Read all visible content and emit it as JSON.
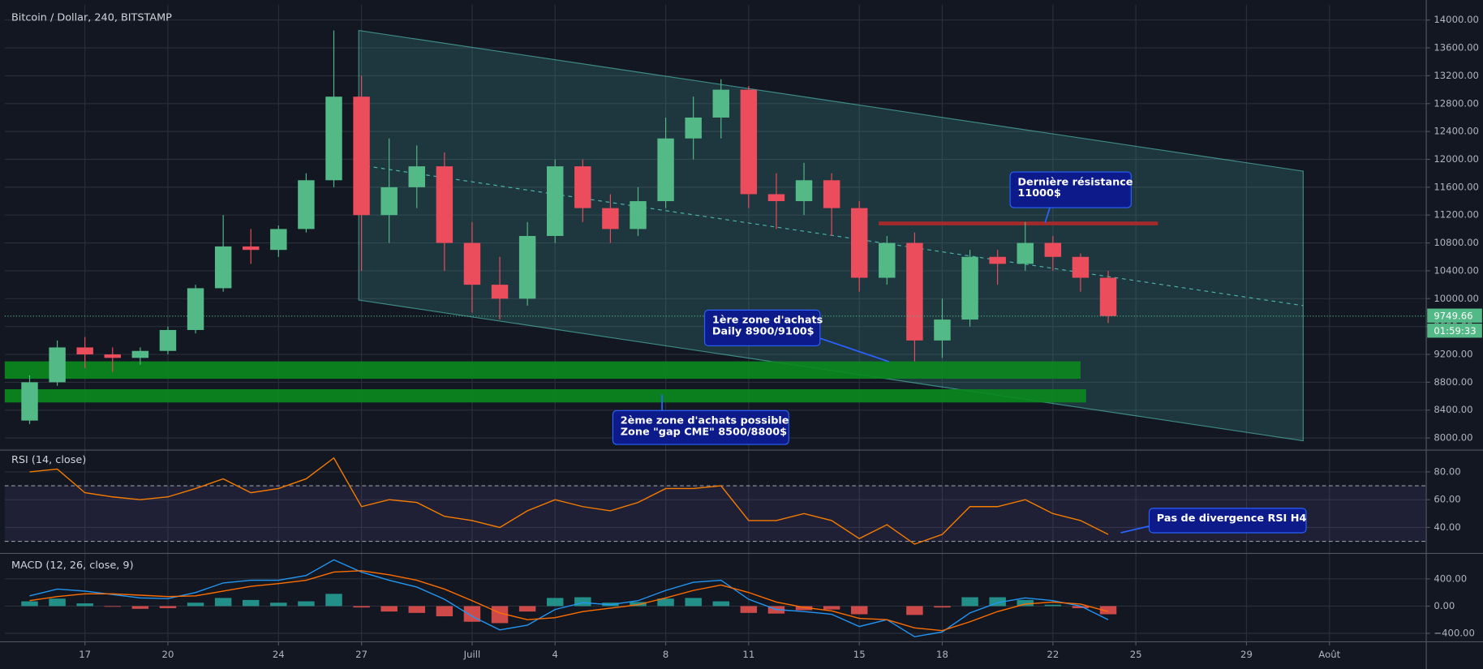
{
  "chart_data": [
    {
      "type": "candlestick",
      "title": "Bitcoin / Dollar, 240, BITSTAMP",
      "x": [
        15,
        16,
        17,
        18,
        19,
        20,
        21,
        22,
        23,
        24,
        25,
        26,
        27,
        28,
        29,
        30,
        31,
        32,
        33,
        34,
        35,
        36,
        37,
        38,
        39,
        40,
        41,
        42,
        43,
        44,
        45,
        46,
        47,
        48,
        49,
        50,
        51,
        52,
        53,
        54
      ],
      "open": [
        8250,
        8800,
        9300,
        9200,
        9150,
        9250,
        9550,
        10150,
        10750,
        10700,
        11000,
        11700,
        12900,
        11200,
        11600,
        11900,
        10800,
        10200,
        10000,
        10900,
        11900,
        11300,
        11000,
        11400,
        12300,
        12600,
        13000,
        11500,
        11400,
        11700,
        11300,
        10300,
        10800,
        9400,
        9700,
        10600,
        10500,
        10800,
        10600,
        10300
      ],
      "high": [
        8900,
        9400,
        9450,
        9300,
        9300,
        9600,
        10200,
        11200,
        11000,
        11050,
        11800,
        13850,
        13200,
        12300,
        12200,
        12100,
        11100,
        10600,
        11100,
        12000,
        12000,
        11500,
        11600,
        12600,
        12900,
        13150,
        13050,
        11800,
        11950,
        11800,
        11400,
        10900,
        10950,
        10000,
        10700,
        10700,
        11100,
        10900,
        10650,
        10400
      ],
      "low": [
        8200,
        8750,
        9000,
        8950,
        9050,
        9200,
        9500,
        10100,
        10500,
        10600,
        10950,
        11600,
        10400,
        10800,
        11300,
        10400,
        9800,
        9700,
        9900,
        10800,
        11100,
        10800,
        10900,
        11300,
        12000,
        12300,
        11300,
        11000,
        11200,
        10900,
        10100,
        10200,
        9100,
        9150,
        9600,
        10200,
        10400,
        10400,
        10100,
        9650
      ],
      "close": [
        8800,
        9300,
        9200,
        9150,
        9250,
        9550,
        10150,
        10750,
        10700,
        11000,
        11700,
        12900,
        11200,
        11600,
        11900,
        10800,
        10200,
        10000,
        10900,
        11900,
        11300,
        11000,
        11400,
        12300,
        12600,
        13000,
        11500,
        11400,
        11700,
        11300,
        10300,
        10800,
        9400,
        9700,
        10600,
        10500,
        10800,
        10600,
        10300,
        9750
      ],
      "up_color": "#53b987",
      "down_color": "#eb4d5c",
      "xlim": [
        14.1,
        65.5
      ],
      "ylim": [
        7840,
        14220
      ],
      "yticks": [
        {
          "value": 8000,
          "label": "8000.00"
        },
        {
          "value": 8400,
          "label": "8400.00"
        },
        {
          "value": 8800,
          "label": "8800.00"
        },
        {
          "value": 9200,
          "label": "9200.00"
        },
        {
          "value": 9600,
          "label": "9600.00"
        },
        {
          "value": 10000,
          "label": "10000.00"
        },
        {
          "value": 10400,
          "label": "10400.00"
        },
        {
          "value": 10800,
          "label": "10800.00"
        },
        {
          "value": 11200,
          "label": "11200.00"
        },
        {
          "value": 11600,
          "label": "11600.00"
        },
        {
          "value": 12000,
          "label": "12000.00"
        },
        {
          "value": 12400,
          "label": "12400.00"
        },
        {
          "value": 12800,
          "label": "12800.00"
        },
        {
          "value": 13200,
          "label": "13200.00"
        },
        {
          "value": 13600,
          "label": "13600.00"
        },
        {
          "value": 14000,
          "label": "14000.00"
        }
      ],
      "grid": true,
      "last_price": 9749.66,
      "countdown": "01:59:33",
      "channel": {
        "start": 26.9,
        "end": 61.05,
        "upper": [
          13850,
          11830
        ],
        "lower": [
          9980,
          7960
        ],
        "mid": [
          11920,
          9900
        ],
        "color": "#4db6ac"
      },
      "zones": [
        {
          "from": 8850,
          "to": 9100,
          "start": 14.1,
          "end": 53.0,
          "color": "#0b8a1e"
        },
        {
          "from": 8510,
          "to": 8700,
          "start": 14.1,
          "end": 53.2,
          "color": "#0b8a1e"
        }
      ],
      "resistance": {
        "level": 11080,
        "start": 45.7,
        "end": 55.8,
        "color": "#a52a2a"
      },
      "annotations": [
        {
          "lines": [
            "Dernière résistance",
            "11000$"
          ]
        },
        {
          "lines": [
            "1ère zone d'achats",
            "Daily 8900/9100$"
          ]
        },
        {
          "lines": [
            "2ème zone d'achats possible",
            "Zone \"gap CME\" 8500/8800$"
          ]
        }
      ]
    },
    {
      "type": "line",
      "title": "RSI (14, close)",
      "x": [
        15,
        16,
        17,
        18,
        19,
        20,
        21,
        22,
        23,
        24,
        25,
        26,
        27,
        28,
        29,
        30,
        31,
        32,
        33,
        34,
        35,
        36,
        37,
        38,
        39,
        40,
        41,
        42,
        43,
        44,
        45,
        46,
        47,
        48,
        49,
        50,
        51,
        52,
        53,
        54
      ],
      "values": [
        80,
        82,
        65,
        62,
        60,
        62,
        68,
        75,
        65,
        68,
        75,
        90,
        55,
        60,
        58,
        48,
        45,
        40,
        52,
        60,
        55,
        52,
        58,
        68,
        68,
        70,
        45,
        45,
        50,
        45,
        32,
        42,
        28,
        35,
        55,
        55,
        60,
        50,
        45,
        35
      ],
      "color": "#f57c00",
      "bands": [
        30,
        70
      ],
      "xlim": [
        14.1,
        65.5
      ],
      "ylim": [
        22,
        95
      ],
      "yticks": [
        {
          "value": 40,
          "label": "40.00"
        },
        {
          "value": 60,
          "label": "60.00"
        },
        {
          "value": 80,
          "label": "80.00"
        }
      ],
      "annotations": [
        {
          "lines": [
            "Pas de divergence RSI H4"
          ]
        }
      ]
    },
    {
      "type": "macd",
      "title": "MACD (12, 26, close, 9)",
      "x": [
        15,
        16,
        17,
        18,
        19,
        20,
        21,
        22,
        23,
        24,
        25,
        26,
        27,
        28,
        29,
        30,
        31,
        32,
        33,
        34,
        35,
        36,
        37,
        38,
        39,
        40,
        41,
        42,
        43,
        44,
        45,
        46,
        47,
        48,
        49,
        50,
        51,
        52,
        53,
        54
      ],
      "series": [
        {
          "name": "MACD",
          "color": "#2196f3",
          "values": [
            150,
            250,
            220,
            170,
            120,
            110,
            200,
            340,
            380,
            380,
            450,
            680,
            500,
            380,
            280,
            100,
            -150,
            -350,
            -280,
            -50,
            50,
            20,
            80,
            230,
            350,
            380,
            100,
            -50,
            -80,
            -120,
            -300,
            -200,
            -450,
            -380,
            -100,
            50,
            120,
            80,
            0,
            -200
          ]
        },
        {
          "name": "Signal",
          "color": "#ff6d00",
          "values": [
            80,
            140,
            180,
            180,
            160,
            140,
            150,
            220,
            290,
            330,
            380,
            500,
            520,
            460,
            380,
            250,
            80,
            -100,
            -200,
            -170,
            -80,
            -30,
            20,
            120,
            230,
            310,
            200,
            60,
            -20,
            -70,
            -180,
            -200,
            -320,
            -360,
            -230,
            -80,
            30,
            60,
            30,
            -80
          ]
        }
      ],
      "histogram": [
        70,
        110,
        40,
        -10,
        -40,
        -30,
        50,
        120,
        90,
        50,
        70,
        180,
        -20,
        -80,
        -100,
        -150,
        -230,
        -250,
        -80,
        120,
        130,
        50,
        60,
        110,
        120,
        70,
        -100,
        -110,
        -60,
        -50,
        -120,
        0,
        -130,
        -20,
        130,
        130,
        90,
        20,
        -30,
        -120
      ],
      "hist_up": "#26a69a",
      "hist_down": "#ef5350",
      "xlim": [
        14.1,
        65.5
      ],
      "ylim": [
        -510,
        760
      ],
      "yticks": [
        {
          "value": -400,
          "label": "−400.00"
        },
        {
          "value": 0,
          "label": "0.00"
        },
        {
          "value": 400,
          "label": "400.00"
        }
      ],
      "xticks": [
        17,
        20,
        24,
        27,
        {
          "value": 31,
          "label": "Juill"
        },
        {
          "value": 34,
          "label": "4"
        },
        {
          "value": 38,
          "label": "8"
        },
        {
          "value": 41,
          "label": "11"
        },
        {
          "value": 45,
          "label": "15"
        },
        {
          "value": 48,
          "label": "18"
        },
        {
          "value": 52,
          "label": "22"
        },
        {
          "value": 55,
          "label": "25"
        },
        {
          "value": 59,
          "label": "29"
        },
        {
          "value": 62,
          "label": "Août"
        }
      ]
    }
  ]
}
